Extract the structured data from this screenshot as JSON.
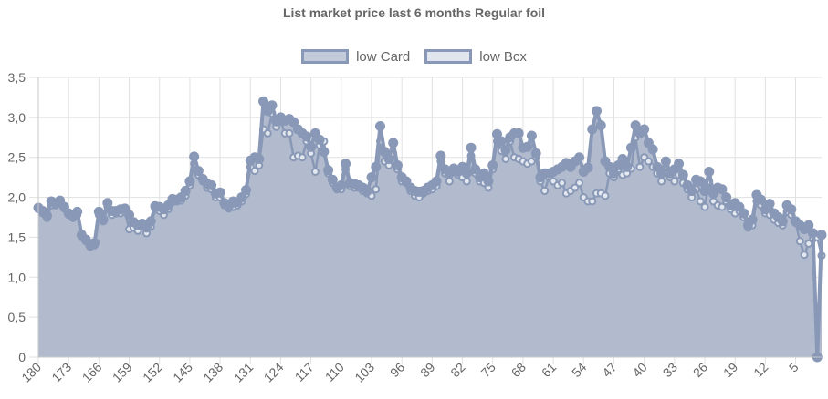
{
  "chart_data": {
    "type": "line",
    "title": "List market price last 6 months Regular foil",
    "legend_position": "top",
    "grid": true,
    "colors": {
      "series_line": "#8898b6",
      "series_fill": "#b1bbcd",
      "grid": "#e1e1e1",
      "text": "#666666"
    },
    "ylim": [
      0,
      3.5
    ],
    "y_ticks": [
      "0",
      "0,5",
      "1,0",
      "1,5",
      "2,0",
      "2,5",
      "3,0",
      "3,5"
    ],
    "x_tick_labels": [
      "180",
      "173",
      "166",
      "159",
      "152",
      "145",
      "138",
      "131",
      "124",
      "117",
      "110",
      "103",
      "96",
      "89",
      "82",
      "75",
      "68",
      "61",
      "54",
      "47",
      "40",
      "33",
      "26",
      "19",
      "12",
      "5"
    ],
    "x_start": 180,
    "series": [
      {
        "name": "low Card",
        "filled": true,
        "values": [
          1.87,
          1.83,
          1.77,
          1.95,
          1.93,
          1.96,
          1.88,
          1.8,
          1.78,
          1.82,
          1.53,
          1.47,
          1.4,
          1.43,
          1.82,
          1.72,
          1.93,
          1.83,
          1.83,
          1.85,
          1.86,
          1.78,
          1.69,
          1.65,
          1.67,
          1.62,
          1.7,
          1.89,
          1.88,
          1.85,
          1.9,
          1.98,
          1.97,
          2.0,
          2.08,
          2.2,
          2.51,
          2.33,
          2.23,
          2.17,
          2.15,
          2.05,
          2.06,
          1.93,
          1.89,
          1.95,
          1.94,
          2.0,
          2.09,
          2.46,
          2.5,
          2.48,
          3.2,
          3.08,
          3.15,
          2.95,
          3.0,
          2.96,
          2.98,
          2.94,
          2.85,
          2.8,
          2.76,
          2.63,
          2.8,
          2.72,
          2.57,
          2.34,
          2.22,
          2.12,
          2.15,
          2.42,
          2.18,
          2.17,
          2.15,
          2.12,
          2.08,
          2.25,
          2.38,
          2.89,
          2.57,
          2.48,
          2.68,
          2.4,
          2.25,
          2.2,
          2.12,
          2.08,
          2.07,
          2.08,
          2.12,
          2.15,
          2.2,
          2.52,
          2.35,
          2.3,
          2.36,
          2.32,
          2.38,
          2.3,
          2.62,
          2.35,
          2.25,
          2.3,
          2.2,
          2.4,
          2.79,
          2.7,
          2.59,
          2.75,
          2.8,
          2.8,
          2.62,
          2.63,
          2.77,
          2.55,
          2.25,
          2.3,
          2.3,
          2.32,
          2.35,
          2.38,
          2.43,
          2.38,
          2.45,
          2.5,
          2.32,
          2.37,
          2.85,
          3.08,
          2.9,
          2.45,
          2.38,
          2.3,
          2.4,
          2.48,
          2.38,
          2.62,
          2.9,
          2.8,
          2.85,
          2.68,
          2.6,
          2.38,
          2.3,
          2.45,
          2.3,
          2.35,
          2.42,
          2.28,
          2.15,
          2.08,
          2.22,
          2.2,
          2.08,
          2.32,
          2.05,
          2.12,
          2.1,
          2.0,
          1.9,
          1.93,
          1.88,
          1.8,
          1.65,
          1.72,
          2.03,
          1.97,
          1.85,
          1.92,
          1.8,
          1.75,
          1.7,
          1.9,
          1.85,
          1.7,
          1.65,
          1.6,
          1.65,
          1.55,
          0.0,
          1.53
        ]
      },
      {
        "name": "low Bcx",
        "filled": false,
        "values": [
          1.85,
          1.8,
          1.74,
          1.9,
          1.9,
          1.92,
          1.86,
          1.78,
          1.74,
          1.78,
          1.5,
          1.45,
          1.38,
          1.4,
          1.78,
          1.7,
          1.88,
          1.78,
          1.8,
          1.8,
          1.82,
          1.6,
          1.62,
          1.58,
          1.65,
          1.55,
          1.63,
          1.85,
          1.83,
          1.78,
          1.85,
          1.94,
          1.95,
          1.96,
          2.02,
          2.15,
          2.42,
          2.28,
          2.2,
          2.12,
          2.1,
          2.0,
          2.0,
          1.9,
          1.86,
          1.88,
          1.9,
          1.95,
          2.04,
          2.38,
          2.33,
          2.4,
          2.85,
          2.8,
          3.05,
          2.88,
          2.95,
          2.8,
          2.8,
          2.5,
          2.52,
          2.5,
          2.7,
          2.55,
          2.32,
          2.65,
          2.7,
          2.3,
          2.18,
          2.1,
          2.1,
          2.35,
          2.14,
          2.12,
          2.12,
          2.08,
          2.05,
          2.02,
          2.1,
          2.7,
          2.45,
          2.4,
          2.55,
          2.35,
          2.2,
          2.18,
          2.08,
          2.02,
          2.0,
          2.05,
          2.08,
          2.1,
          2.14,
          2.45,
          2.3,
          2.2,
          2.32,
          2.28,
          2.25,
          2.2,
          2.52,
          2.3,
          2.2,
          2.18,
          2.12,
          2.35,
          2.7,
          2.58,
          2.48,
          2.7,
          2.5,
          2.48,
          2.45,
          2.42,
          2.45,
          2.5,
          2.2,
          2.08,
          2.25,
          2.2,
          2.15,
          2.18,
          2.05,
          2.08,
          2.12,
          2.18,
          2.0,
          1.95,
          1.95,
          2.05,
          2.05,
          2.02,
          2.3,
          2.25,
          2.35,
          2.28,
          2.3,
          2.36,
          2.75,
          2.38,
          2.5,
          2.45,
          2.38,
          2.3,
          2.2,
          2.38,
          2.25,
          2.2,
          2.28,
          2.18,
          2.1,
          2.0,
          2.1,
          1.95,
          1.88,
          2.2,
          1.95,
          1.9,
          1.88,
          1.95,
          1.85,
          1.8,
          1.83,
          1.75,
          1.62,
          1.65,
          1.95,
          1.9,
          1.8,
          1.78,
          1.72,
          1.68,
          1.65,
          1.82,
          1.78,
          1.68,
          1.45,
          1.28,
          1.42,
          1.48,
          1.5,
          1.27
        ]
      }
    ]
  }
}
